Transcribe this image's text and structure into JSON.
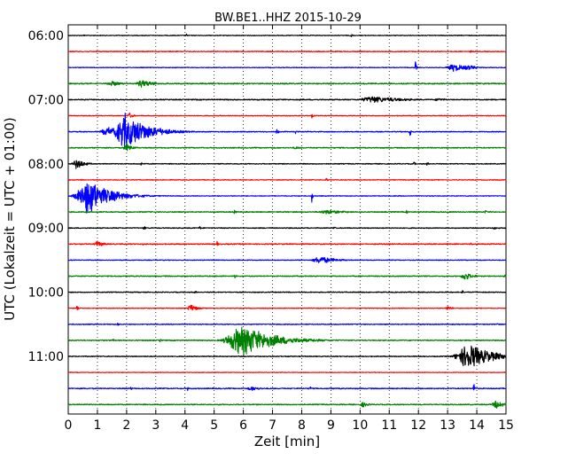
{
  "chart_data": {
    "type": "line",
    "chart_kind": "seismogram-dayplot",
    "title": "BW.BE1..HHZ 2015-10-29",
    "xlabel": "Zeit  [min]",
    "ylabel": "UTC (Lokalzeit = UTC + 01:00)",
    "xlim": [
      0,
      15
    ],
    "x_ticks": [
      0,
      1,
      2,
      3,
      4,
      5,
      6,
      7,
      8,
      9,
      10,
      11,
      12,
      13,
      14,
      15
    ],
    "x_tick_labels": [
      "0",
      "1",
      "2",
      "3",
      "4",
      "5",
      "6",
      "7",
      "8",
      "9",
      "10",
      "11",
      "12",
      "13",
      "14",
      "15"
    ],
    "y_tick_labels": [
      "06:00",
      "07:00",
      "08:00",
      "09:00",
      "10:00",
      "11:00"
    ],
    "y_tick_row_index": [
      0,
      4,
      8,
      12,
      16,
      20
    ],
    "minutes_per_row": 15,
    "grid": {
      "x": "dotted vertical lines at each minute",
      "y": "none"
    },
    "colors": [
      "#000000",
      "#ff0000",
      "#0000ff",
      "#008000"
    ],
    "rows": [
      {
        "start": "06:00",
        "color": "#000000",
        "base_noise": 0.05,
        "events": [
          {
            "t": 0.55,
            "amp": 0.18,
            "dur": 0.05
          },
          {
            "t": 4.05,
            "amp": 0.2,
            "dur": 0.05
          },
          {
            "t": 9.7,
            "amp": 0.3,
            "dur": 0.04
          }
        ]
      },
      {
        "start": "06:15",
        "color": "#ff0000",
        "base_noise": 0.06,
        "events": [
          {
            "t": 7.0,
            "amp": 0.12,
            "dur": 0.05
          },
          {
            "t": 13.8,
            "amp": 0.15,
            "dur": 0.08
          }
        ]
      },
      {
        "start": "06:30",
        "color": "#0000ff",
        "base_noise": 0.05,
        "events": [
          {
            "t": 11.9,
            "amp": 1.0,
            "dur": 0.03
          },
          {
            "t": 13.2,
            "amp": 0.55,
            "dur": 0.4
          },
          {
            "t": 13.7,
            "amp": 0.35,
            "dur": 0.3
          }
        ]
      },
      {
        "start": "06:45",
        "color": "#008000",
        "base_noise": 0.08,
        "events": [
          {
            "t": 1.5,
            "amp": 0.35,
            "dur": 0.35
          },
          {
            "t": 2.55,
            "amp": 0.55,
            "dur": 0.35
          },
          {
            "t": 2.9,
            "amp": 0.2,
            "dur": 0.2
          }
        ]
      },
      {
        "start": "07:00",
        "color": "#000000",
        "base_noise": 0.07,
        "events": [
          {
            "t": 0.55,
            "amp": 0.15,
            "dur": 0.05
          },
          {
            "t": 10.5,
            "amp": 0.45,
            "dur": 0.9
          },
          {
            "t": 11.2,
            "amp": 0.25,
            "dur": 0.3
          },
          {
            "t": 12.7,
            "amp": 0.2,
            "dur": 0.3
          }
        ]
      },
      {
        "start": "07:15",
        "color": "#ff0000",
        "base_noise": 0.05,
        "events": [
          {
            "t": 2.1,
            "amp": 0.4,
            "dur": 0.12
          },
          {
            "t": 8.35,
            "amp": 0.4,
            "dur": 0.04
          }
        ]
      },
      {
        "start": "07:30",
        "color": "#0000ff",
        "base_noise": 0.06,
        "events": [
          {
            "t": 2.0,
            "amp": 2.4,
            "dur": 0.7
          },
          {
            "t": 1.4,
            "amp": 0.6,
            "dur": 0.5
          },
          {
            "t": 7.15,
            "amp": 0.5,
            "dur": 0.05
          },
          {
            "t": 7.8,
            "amp": 0.4,
            "dur": 0.05
          },
          {
            "t": 11.7,
            "amp": 1.3,
            "dur": 0.03
          }
        ]
      },
      {
        "start": "07:45",
        "color": "#008000",
        "base_noise": 0.07,
        "events": [
          {
            "t": 2.0,
            "amp": 0.6,
            "dur": 0.2
          },
          {
            "t": 7.8,
            "amp": 0.2,
            "dur": 0.2
          }
        ]
      },
      {
        "start": "08:00",
        "color": "#000000",
        "base_noise": 0.06,
        "events": [
          {
            "t": 0.3,
            "amp": 0.7,
            "dur": 0.25
          },
          {
            "t": 2.5,
            "amp": 0.35,
            "dur": 0.04
          },
          {
            "t": 11.85,
            "amp": 0.35,
            "dur": 0.04
          },
          {
            "t": 12.3,
            "amp": 0.4,
            "dur": 0.04
          }
        ]
      },
      {
        "start": "08:15",
        "color": "#ff0000",
        "base_noise": 0.05,
        "events": [
          {
            "t": 0.45,
            "amp": 0.15,
            "dur": 0.05
          },
          {
            "t": 8.85,
            "amp": 0.3,
            "dur": 0.04
          }
        ]
      },
      {
        "start": "08:30",
        "color": "#0000ff",
        "base_noise": 0.05,
        "events": [
          {
            "t": 0.7,
            "amp": 2.3,
            "dur": 0.7
          },
          {
            "t": 8.35,
            "amp": 0.9,
            "dur": 0.03
          }
        ]
      },
      {
        "start": "08:45",
        "color": "#008000",
        "base_noise": 0.07,
        "events": [
          {
            "t": 5.7,
            "amp": 0.35,
            "dur": 0.05
          },
          {
            "t": 8.9,
            "amp": 0.3,
            "dur": 0.6
          },
          {
            "t": 11.6,
            "amp": 0.3,
            "dur": 0.05
          },
          {
            "t": 14.3,
            "amp": 0.3,
            "dur": 0.05
          }
        ]
      },
      {
        "start": "09:00",
        "color": "#000000",
        "base_noise": 0.06,
        "events": [
          {
            "t": 2.6,
            "amp": 0.3,
            "dur": 0.05
          },
          {
            "t": 4.5,
            "amp": 0.3,
            "dur": 0.05
          },
          {
            "t": 9.1,
            "amp": 0.35,
            "dur": 0.04
          },
          {
            "t": 14.6,
            "amp": 0.3,
            "dur": 0.05
          }
        ]
      },
      {
        "start": "09:15",
        "color": "#ff0000",
        "base_noise": 0.07,
        "events": [
          {
            "t": 1.0,
            "amp": 0.45,
            "dur": 0.2
          },
          {
            "t": 2.55,
            "amp": 0.3,
            "dur": 0.04
          },
          {
            "t": 5.1,
            "amp": 0.45,
            "dur": 0.04
          },
          {
            "t": 13.8,
            "amp": 0.3,
            "dur": 0.05
          }
        ]
      },
      {
        "start": "09:30",
        "color": "#0000ff",
        "base_noise": 0.05,
        "events": [
          {
            "t": 8.65,
            "amp": 0.5,
            "dur": 0.5
          }
        ]
      },
      {
        "start": "09:45",
        "color": "#008000",
        "base_noise": 0.07,
        "events": [
          {
            "t": 5.7,
            "amp": 0.3,
            "dur": 0.05
          },
          {
            "t": 13.6,
            "amp": 0.55,
            "dur": 0.25
          },
          {
            "t": 14.95,
            "amp": 0.3,
            "dur": 0.05
          }
        ]
      },
      {
        "start": "10:00",
        "color": "#000000",
        "base_noise": 0.06,
        "events": [
          {
            "t": 4.35,
            "amp": 0.3,
            "dur": 0.04
          },
          {
            "t": 13.5,
            "amp": 0.3,
            "dur": 0.05
          }
        ]
      },
      {
        "start": "10:15",
        "color": "#ff0000",
        "base_noise": 0.05,
        "events": [
          {
            "t": 0.3,
            "amp": 0.4,
            "dur": 0.04
          },
          {
            "t": 4.2,
            "amp": 0.55,
            "dur": 0.2
          },
          {
            "t": 13.0,
            "amp": 0.3,
            "dur": 0.15
          }
        ]
      },
      {
        "start": "10:30",
        "color": "#0000ff",
        "base_noise": 0.06,
        "events": [
          {
            "t": 1.7,
            "amp": 0.3,
            "dur": 0.05
          },
          {
            "t": 14.7,
            "amp": 0.35,
            "dur": 0.04
          }
        ]
      },
      {
        "start": "10:45",
        "color": "#008000",
        "base_noise": 0.07,
        "events": [
          {
            "t": 6.0,
            "amp": 2.0,
            "dur": 1.0
          },
          {
            "t": 1.55,
            "amp": 0.3,
            "dur": 0.04
          },
          {
            "t": 3.15,
            "amp": 0.3,
            "dur": 0.04
          }
        ]
      },
      {
        "start": "11:00",
        "color": "#000000",
        "base_noise": 0.06,
        "events": [
          {
            "t": 13.75,
            "amp": 1.6,
            "dur": 0.8
          }
        ]
      },
      {
        "start": "11:15",
        "color": "#ff0000",
        "base_noise": 0.04,
        "events": []
      },
      {
        "start": "11:30",
        "color": "#0000ff",
        "base_noise": 0.07,
        "events": [
          {
            "t": 2.15,
            "amp": 0.3,
            "dur": 0.05
          },
          {
            "t": 4.1,
            "amp": 0.35,
            "dur": 0.04
          },
          {
            "t": 6.3,
            "amp": 0.3,
            "dur": 0.3
          },
          {
            "t": 8.3,
            "amp": 0.3,
            "dur": 0.05
          },
          {
            "t": 13.9,
            "amp": 1.0,
            "dur": 0.04
          }
        ]
      },
      {
        "start": "11:45",
        "color": "#008000",
        "base_noise": 0.07,
        "events": [
          {
            "t": 10.1,
            "amp": 0.35,
            "dur": 0.2
          },
          {
            "t": 14.7,
            "amp": 0.6,
            "dur": 0.3
          }
        ]
      }
    ]
  }
}
